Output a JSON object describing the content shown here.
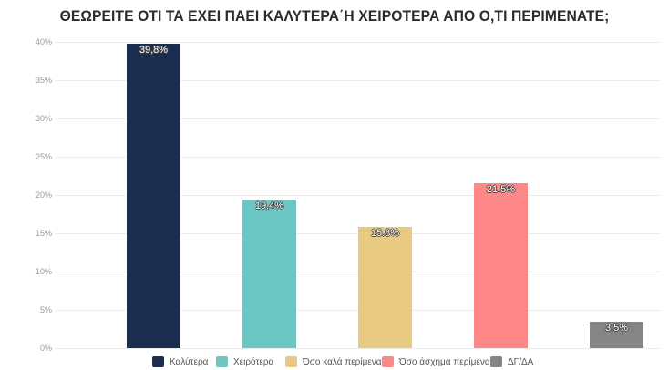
{
  "chart_data": {
    "type": "bar",
    "title": "ΘΕΩΡΕΙΤΕ ΟΤΙ ΤΑ ΕΧΕΙ ΠΑΕΙ ΚΑΛΥΤΕΡΑ΄Η ΧΕΙΡΟΤΕΡΑ ΑΠΟ Ο,ΤΙ ΠΕΡΙΜΕΝΑΤΕ;",
    "xlabel": "",
    "ylabel": "",
    "categories": [
      "Καλύτερα",
      "Χειρότερα",
      "Όσο καλά περίμενα",
      "Όσο άσχημα περίμενα",
      "ΔΓ/ΔΑ"
    ],
    "values": [
      39.8,
      19.4,
      15.8,
      21.5,
      3.5
    ],
    "value_labels": [
      "39,8%",
      "19,4%",
      "15.8%",
      "21.5%",
      "3.5%"
    ],
    "colors": [
      "#1b2d4f",
      "#6cc6c4",
      "#e8cb80",
      "#fe8787",
      "#858585"
    ],
    "ylim": [
      0,
      40
    ],
    "yticks": [
      "0%",
      "5%",
      "10%",
      "15%",
      "20%",
      "25%",
      "30%",
      "35%",
      "40%"
    ],
    "ytick_values": [
      0,
      5,
      10,
      15,
      20,
      25,
      30,
      35,
      40
    ],
    "grid": true,
    "legend_position": "bottom"
  },
  "legend": [
    {
      "label": "Καλύτερα",
      "color": "#1b2d4f"
    },
    {
      "label": "Χειρότερα",
      "color": "#6cc6c4"
    },
    {
      "label": "Όσο καλά περίμενα",
      "color": "#e8cb80"
    },
    {
      "label": "Όσο άσχημα περίμενα",
      "color": "#fe8787"
    },
    {
      "label": "ΔΓ/ΔΑ",
      "color": "#858585"
    }
  ]
}
